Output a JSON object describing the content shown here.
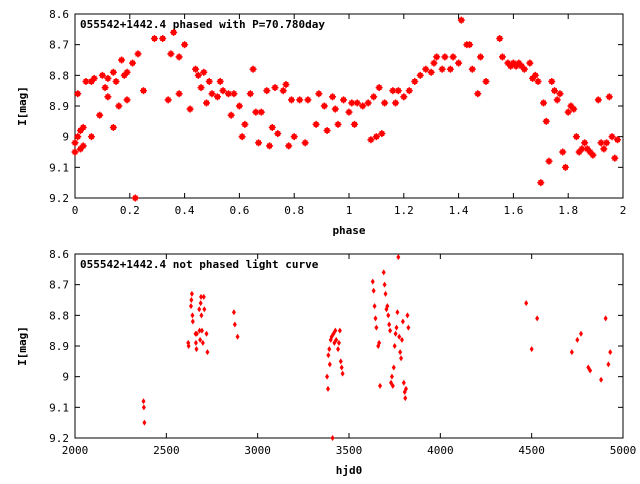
{
  "chart_data": [
    {
      "type": "scatter",
      "title": "055542+1442.4 phased with P=70.780day",
      "xlabel": "phase",
      "ylabel": "I[mag]",
      "xlim": [
        0,
        2
      ],
      "ylim": [
        9.2,
        8.6
      ],
      "y_inverted": true,
      "grid": false,
      "legend": "none",
      "marker_color": "#ff0000",
      "xticks": [
        "0",
        "0.2",
        "0.4",
        "0.6",
        "0.8",
        "1",
        "1.2",
        "1.4",
        "1.6",
        "1.8",
        "2"
      ],
      "yticks": [
        "8.6",
        "8.7",
        "8.8",
        "8.9",
        "9",
        "9.1",
        "9.2"
      ],
      "series": [
        {
          "points": [
            [
              0.0,
              9.02
            ],
            [
              0.0,
              9.05
            ],
            [
              0.01,
              8.86
            ],
            [
              0.01,
              9.0
            ],
            [
              0.02,
              8.98
            ],
            [
              0.02,
              9.04
            ],
            [
              0.03,
              8.97
            ],
            [
              0.03,
              9.03
            ],
            [
              0.04,
              8.82
            ],
            [
              0.06,
              8.82
            ],
            [
              0.06,
              9.0
            ],
            [
              0.07,
              8.81
            ],
            [
              0.09,
              8.93
            ],
            [
              0.1,
              8.8
            ],
            [
              0.11,
              8.84
            ],
            [
              0.12,
              8.81
            ],
            [
              0.12,
              8.87
            ],
            [
              0.14,
              8.79
            ],
            [
              0.14,
              8.97
            ],
            [
              0.15,
              8.82
            ],
            [
              0.16,
              8.9
            ],
            [
              0.17,
              8.75
            ],
            [
              0.18,
              8.8
            ],
            [
              0.19,
              8.79
            ],
            [
              0.19,
              8.88
            ],
            [
              0.21,
              8.76
            ],
            [
              0.22,
              9.2
            ],
            [
              0.23,
              8.73
            ],
            [
              0.25,
              8.85
            ],
            [
              0.29,
              8.68
            ],
            [
              0.32,
              8.68
            ],
            [
              0.34,
              8.88
            ],
            [
              0.35,
              8.73
            ],
            [
              0.36,
              8.66
            ],
            [
              0.38,
              8.74
            ],
            [
              0.38,
              8.86
            ],
            [
              0.4,
              8.7
            ],
            [
              0.42,
              8.91
            ],
            [
              0.44,
              8.78
            ],
            [
              0.45,
              8.8
            ],
            [
              0.46,
              8.84
            ],
            [
              0.47,
              8.79
            ],
            [
              0.48,
              8.89
            ],
            [
              0.49,
              8.82
            ],
            [
              0.5,
              8.86
            ],
            [
              0.52,
              8.87
            ],
            [
              0.53,
              8.82
            ],
            [
              0.54,
              8.85
            ],
            [
              0.56,
              8.86
            ],
            [
              0.57,
              8.93
            ],
            [
              0.58,
              8.86
            ],
            [
              0.6,
              8.9
            ],
            [
              0.61,
              9.0
            ],
            [
              0.62,
              8.96
            ],
            [
              0.64,
              8.86
            ],
            [
              0.65,
              8.78
            ],
            [
              0.66,
              8.92
            ],
            [
              0.67,
              9.02
            ],
            [
              0.68,
              8.92
            ],
            [
              0.7,
              8.85
            ],
            [
              0.71,
              9.03
            ],
            [
              0.72,
              8.97
            ],
            [
              0.73,
              8.84
            ],
            [
              0.74,
              8.99
            ],
            [
              0.76,
              8.85
            ],
            [
              0.77,
              8.83
            ],
            [
              0.78,
              9.03
            ],
            [
              0.79,
              8.88
            ],
            [
              0.8,
              9.0
            ],
            [
              0.82,
              8.88
            ],
            [
              0.84,
              9.02
            ],
            [
              0.85,
              8.88
            ],
            [
              0.88,
              8.96
            ],
            [
              0.89,
              8.86
            ],
            [
              0.91,
              8.9
            ],
            [
              0.92,
              8.98
            ],
            [
              0.94,
              8.87
            ],
            [
              0.95,
              8.91
            ],
            [
              0.96,
              8.96
            ],
            [
              0.98,
              8.88
            ],
            [
              1.0,
              8.92
            ],
            [
              1.01,
              8.89
            ],
            [
              1.02,
              8.96
            ],
            [
              1.03,
              8.89
            ],
            [
              1.05,
              8.9
            ],
            [
              1.07,
              8.89
            ],
            [
              1.08,
              9.01
            ],
            [
              1.09,
              8.87
            ],
            [
              1.1,
              9.0
            ],
            [
              1.11,
              8.84
            ],
            [
              1.12,
              8.99
            ],
            [
              1.13,
              8.89
            ],
            [
              1.16,
              8.85
            ],
            [
              1.17,
              8.89
            ],
            [
              1.18,
              8.85
            ],
            [
              1.2,
              8.87
            ],
            [
              1.22,
              8.85
            ],
            [
              1.24,
              8.82
            ],
            [
              1.26,
              8.8
            ],
            [
              1.28,
              8.78
            ],
            [
              1.3,
              8.79
            ],
            [
              1.31,
              8.76
            ],
            [
              1.32,
              8.74
            ],
            [
              1.34,
              8.78
            ],
            [
              1.35,
              8.74
            ],
            [
              1.37,
              8.78
            ],
            [
              1.38,
              8.74
            ],
            [
              1.4,
              8.76
            ],
            [
              1.41,
              8.62
            ],
            [
              1.43,
              8.7
            ],
            [
              1.44,
              8.7
            ],
            [
              1.45,
              8.78
            ],
            [
              1.47,
              8.86
            ],
            [
              1.48,
              8.74
            ],
            [
              1.5,
              8.82
            ],
            [
              1.55,
              8.68
            ],
            [
              1.56,
              8.74
            ],
            [
              1.58,
              8.76
            ],
            [
              1.59,
              8.77
            ],
            [
              1.6,
              8.76
            ],
            [
              1.61,
              8.77
            ],
            [
              1.62,
              8.76
            ],
            [
              1.63,
              8.77
            ],
            [
              1.64,
              8.78
            ],
            [
              1.66,
              8.76
            ],
            [
              1.67,
              8.81
            ],
            [
              1.68,
              8.8
            ],
            [
              1.69,
              8.82
            ],
            [
              1.7,
              9.15
            ],
            [
              1.71,
              8.89
            ],
            [
              1.72,
              8.95
            ],
            [
              1.73,
              9.08
            ],
            [
              1.74,
              8.82
            ],
            [
              1.75,
              8.85
            ],
            [
              1.76,
              8.88
            ],
            [
              1.77,
              8.86
            ],
            [
              1.78,
              9.05
            ],
            [
              1.79,
              9.1
            ],
            [
              1.8,
              8.92
            ],
            [
              1.81,
              8.9
            ],
            [
              1.82,
              8.91
            ],
            [
              1.83,
              9.0
            ],
            [
              1.84,
              9.05
            ],
            [
              1.85,
              9.04
            ],
            [
              1.86,
              9.02
            ],
            [
              1.87,
              9.04
            ],
            [
              1.88,
              9.05
            ],
            [
              1.89,
              9.06
            ],
            [
              1.91,
              8.88
            ],
            [
              1.92,
              9.02
            ],
            [
              1.93,
              9.04
            ],
            [
              1.94,
              9.02
            ],
            [
              1.95,
              8.87
            ],
            [
              1.96,
              9.0
            ],
            [
              1.97,
              9.07
            ],
            [
              1.98,
              9.01
            ]
          ]
        }
      ]
    },
    {
      "type": "scatter",
      "title": "055542+1442.4 not phased light curve",
      "xlabel": "hjd0",
      "ylabel": "I[mag]",
      "xlim": [
        2000,
        5000
      ],
      "ylim": [
        9.2,
        8.6
      ],
      "y_inverted": true,
      "grid": false,
      "legend": "none",
      "marker_color": "#ff0000",
      "xticks": [
        "2000",
        "2500",
        "3000",
        "3500",
        "4000",
        "4500",
        "5000"
      ],
      "yticks": [
        "8.6",
        "8.7",
        "8.8",
        "8.9",
        "9",
        "9.1",
        "9.2"
      ],
      "series": [
        {
          "points": [
            [
              2375,
              9.08
            ],
            [
              2377,
              9.1
            ],
            [
              2380,
              9.15
            ],
            [
              2620,
              8.89
            ],
            [
              2622,
              8.9
            ],
            [
              2635,
              8.77
            ],
            [
              2637,
              8.75
            ],
            [
              2640,
              8.73
            ],
            [
              2643,
              8.8
            ],
            [
              2645,
              8.82
            ],
            [
              2660,
              8.86
            ],
            [
              2662,
              8.89
            ],
            [
              2665,
              8.91
            ],
            [
              2667,
              8.86
            ],
            [
              2680,
              8.78
            ],
            [
              2682,
              8.85
            ],
            [
              2685,
              8.88
            ],
            [
              2688,
              8.76
            ],
            [
              2690,
              8.74
            ],
            [
              2692,
              8.8
            ],
            [
              2695,
              8.85
            ],
            [
              2700,
              8.89
            ],
            [
              2705,
              8.74
            ],
            [
              2708,
              8.78
            ],
            [
              2720,
              8.86
            ],
            [
              2725,
              8.92
            ],
            [
              2870,
              8.79
            ],
            [
              2875,
              8.83
            ],
            [
              2890,
              8.87
            ],
            [
              3380,
              9.0
            ],
            [
              3385,
              9.04
            ],
            [
              3387,
              8.93
            ],
            [
              3392,
              8.91
            ],
            [
              3395,
              8.96
            ],
            [
              3400,
              8.88
            ],
            [
              3405,
              8.87
            ],
            [
              3410,
              9.2
            ],
            [
              3415,
              8.86
            ],
            [
              3420,
              8.89
            ],
            [
              3425,
              8.85
            ],
            [
              3430,
              8.88
            ],
            [
              3440,
              8.91
            ],
            [
              3445,
              8.89
            ],
            [
              3450,
              8.85
            ],
            [
              3455,
              8.95
            ],
            [
              3460,
              8.97
            ],
            [
              3465,
              8.99
            ],
            [
              3630,
              8.69
            ],
            [
              3635,
              8.72
            ],
            [
              3640,
              8.77
            ],
            [
              3645,
              8.81
            ],
            [
              3650,
              8.84
            ],
            [
              3660,
              8.9
            ],
            [
              3665,
              8.89
            ],
            [
              3670,
              9.03
            ],
            [
              3690,
              8.66
            ],
            [
              3695,
              8.7
            ],
            [
              3700,
              8.73
            ],
            [
              3705,
              8.78
            ],
            [
              3710,
              8.77
            ],
            [
              3715,
              8.8
            ],
            [
              3720,
              8.83
            ],
            [
              3725,
              8.85
            ],
            [
              3730,
              9.02
            ],
            [
              3735,
              9.0
            ],
            [
              3740,
              9.03
            ],
            [
              3745,
              8.97
            ],
            [
              3750,
              8.9
            ],
            [
              3755,
              8.86
            ],
            [
              3760,
              8.84
            ],
            [
              3765,
              8.79
            ],
            [
              3770,
              8.61
            ],
            [
              3775,
              8.87
            ],
            [
              3780,
              8.92
            ],
            [
              3785,
              8.94
            ],
            [
              3790,
              8.88
            ],
            [
              3795,
              8.82
            ],
            [
              3800,
              9.02
            ],
            [
              3805,
              9.05
            ],
            [
              3808,
              9.07
            ],
            [
              3812,
              9.04
            ],
            [
              3820,
              8.8
            ],
            [
              3825,
              8.84
            ]
          ]
        },
        {
          "points": [
            [
              4470,
              8.76
            ],
            [
              4500,
              8.91
            ],
            [
              4530,
              8.81
            ],
            [
              4720,
              8.92
            ],
            [
              4750,
              8.88
            ],
            [
              4770,
              8.86
            ],
            [
              4810,
              8.97
            ],
            [
              4820,
              8.98
            ],
            [
              4880,
              9.01
            ],
            [
              4905,
              8.81
            ],
            [
              4920,
              8.96
            ],
            [
              4930,
              8.92
            ]
          ]
        }
      ]
    }
  ]
}
